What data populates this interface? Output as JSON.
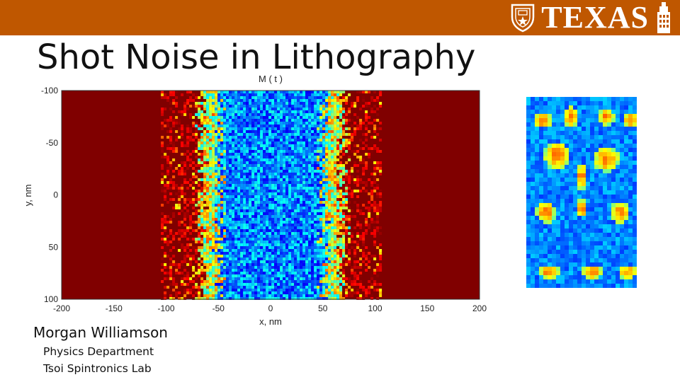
{
  "header": {
    "logo_text": "TEXAS",
    "logo_icons": [
      "ut-seal-icon",
      "ut-tower-icon"
    ],
    "bar_color": "#bf5700"
  },
  "slide": {
    "title": "Shot Noise in Lithography",
    "author": "Morgan Williamson",
    "affiliation_line1": "Physics Department",
    "affiliation_line2": "Tsoi Spintronics Lab"
  },
  "chart_data": {
    "type": "heatmap",
    "title": "M ( t )",
    "xlabel": "x, nm",
    "ylabel": "y, nm",
    "xlim": [
      -200,
      200
    ],
    "ylim": [
      -100,
      100
    ],
    "y_inverted": true,
    "x_ticks": [
      -200,
      -150,
      -100,
      -50,
      0,
      50,
      100,
      150,
      200
    ],
    "y_ticks": [
      -100,
      -50,
      0,
      50,
      100
    ],
    "colormap": "jet",
    "description_of_field": "exposed stripe from about x=-70 to x=70 nm, low values (blue) in center, high values (dark red) outside",
    "colors": {
      "low": "#0a2ad0",
      "high": "#8b0000"
    }
  }
}
